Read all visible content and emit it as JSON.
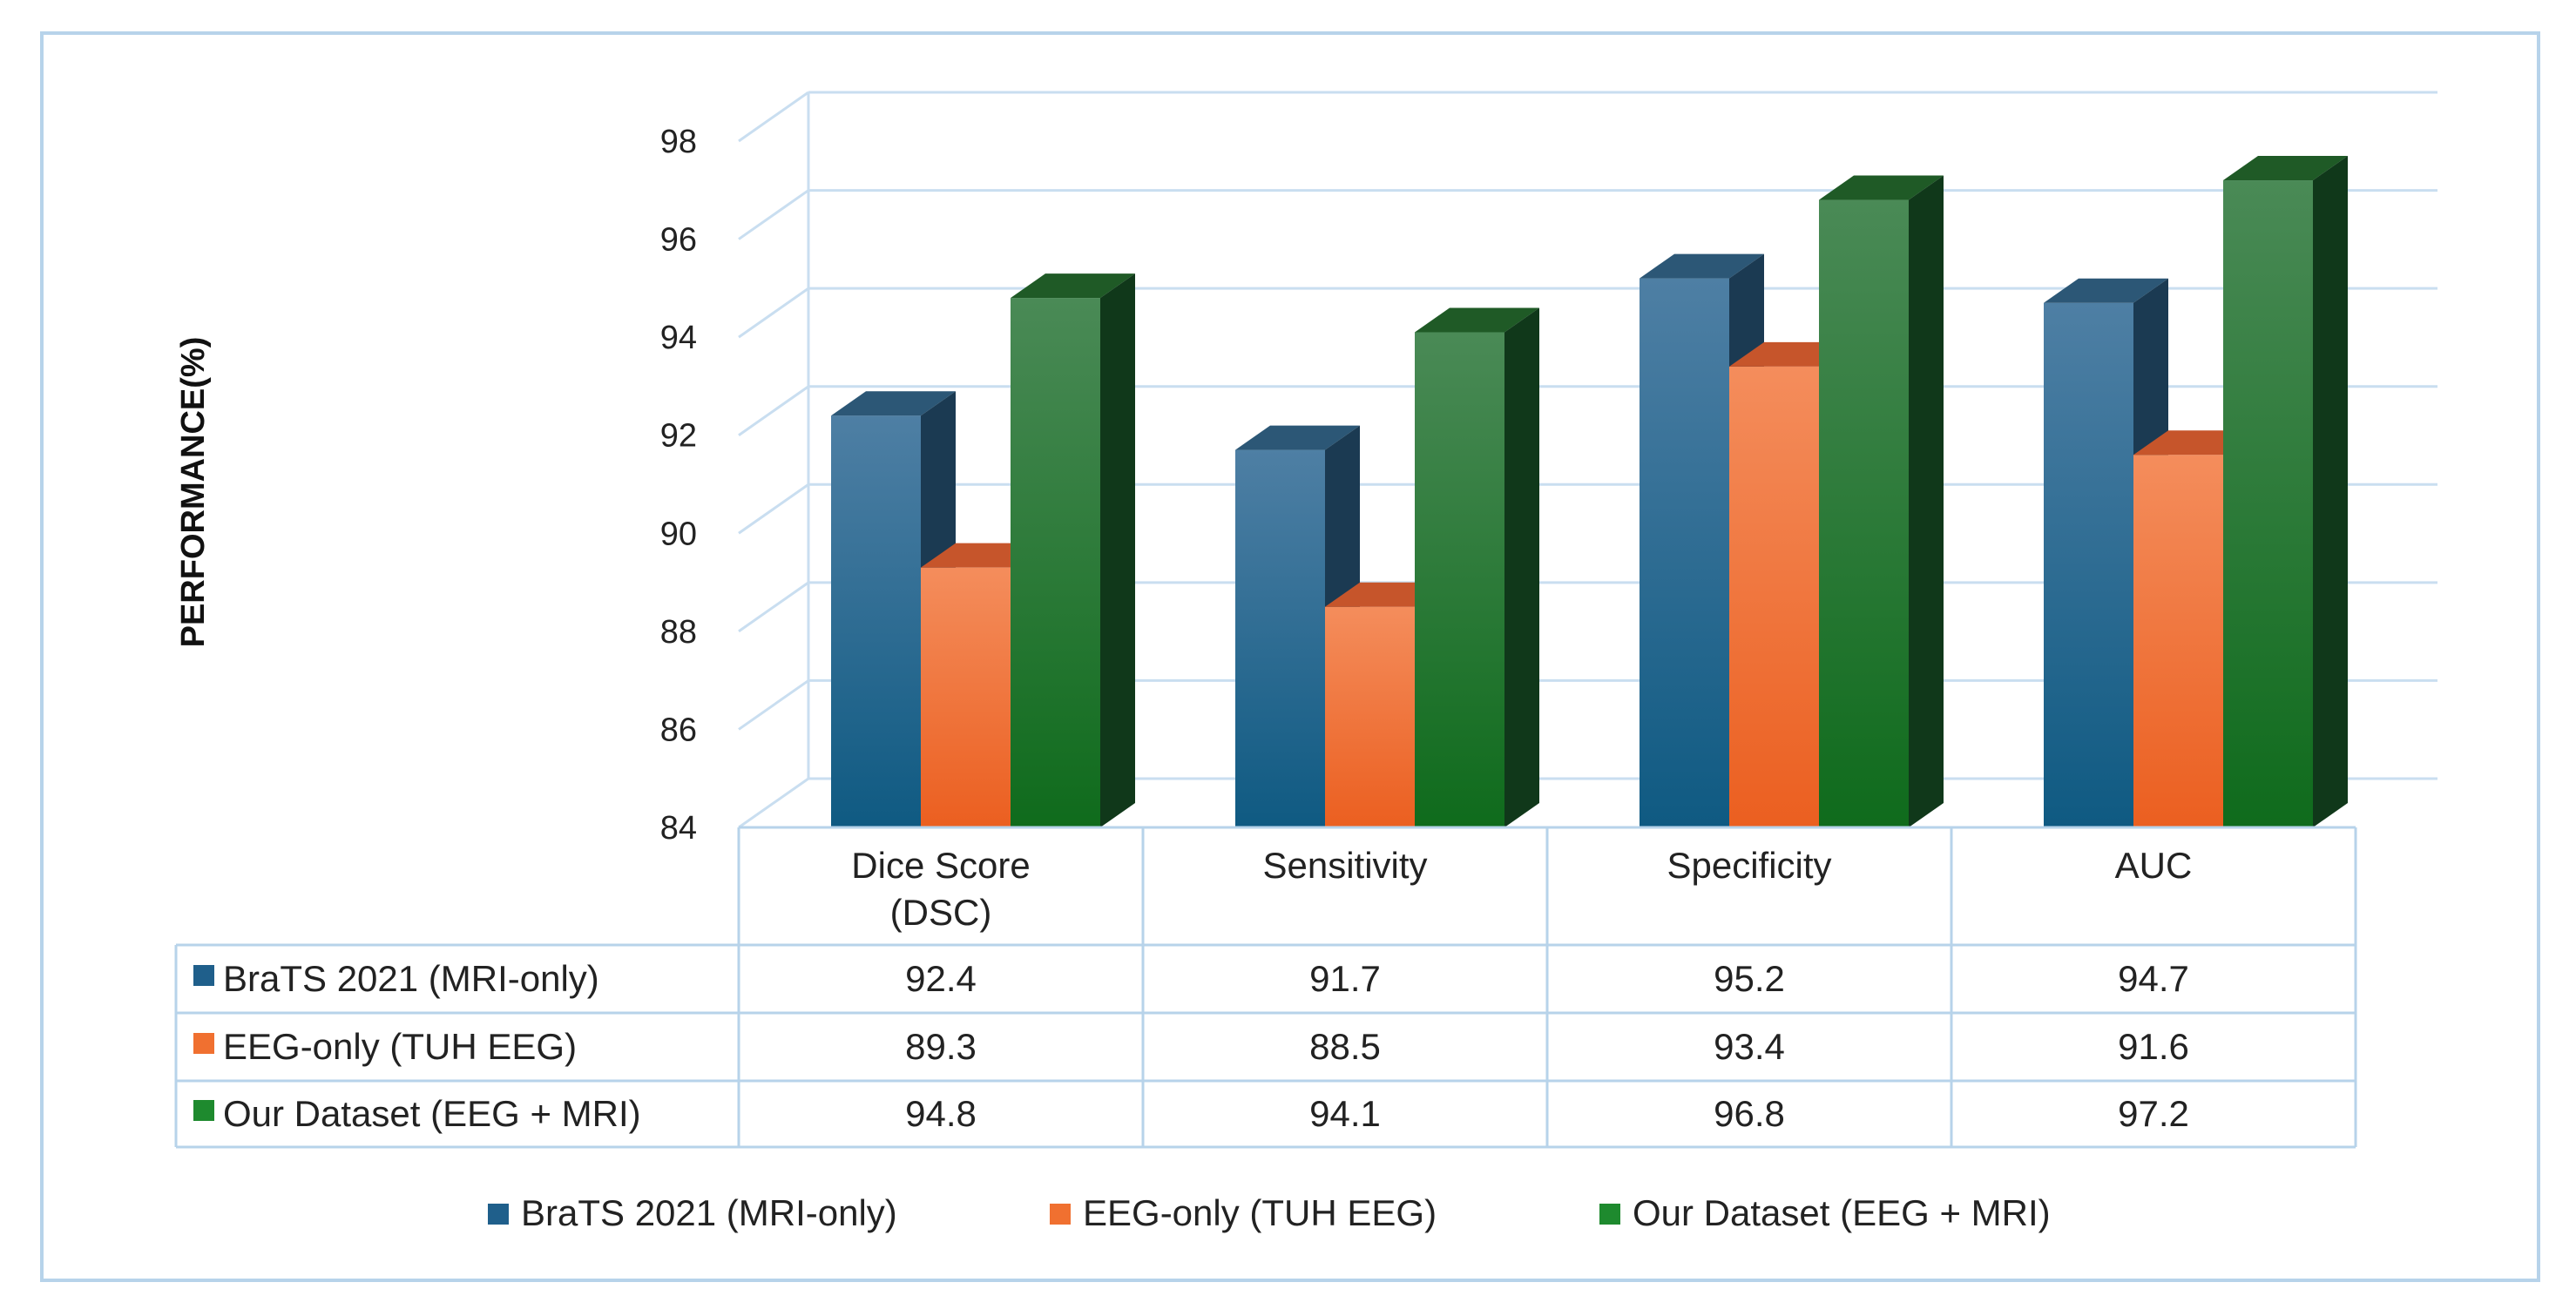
{
  "chart_data": {
    "type": "bar",
    "title": "",
    "xlabel": "",
    "ylabel": "PERFORMANCE(%)",
    "ylim": [
      84,
      98
    ],
    "yticks": [
      "84",
      "86",
      "88",
      "90",
      "92",
      "94",
      "96",
      "98"
    ],
    "grid": true,
    "legend_position": "bottom",
    "categories": [
      {
        "line1": "Dice Score",
        "line2": "(DSC)"
      },
      {
        "line1": "Sensitivity",
        "line2": ""
      },
      {
        "line1": "Specificity",
        "line2": ""
      },
      {
        "line1": "AUC",
        "line2": ""
      }
    ],
    "series": [
      {
        "name": "BraTS 2021 (MRI-only)",
        "values": [
          92.4,
          91.7,
          95.2,
          94.7
        ],
        "labels": [
          "92.4",
          "91.7",
          "95.2",
          "94.7"
        ],
        "color": "#1f5f8b"
      },
      {
        "name": "EEG-only (TUH EEG)",
        "values": [
          89.3,
          88.5,
          93.4,
          91.6
        ],
        "labels": [
          "89.3",
          "88.5",
          "93.4",
          "91.6"
        ],
        "color": "#f07030"
      },
      {
        "name": "Our Dataset (EEG + MRI)",
        "values": [
          94.8,
          94.1,
          96.8,
          97.2
        ],
        "labels": [
          "94.8",
          "94.1",
          "96.8",
          "97.2"
        ],
        "color": "#1e8a2e"
      }
    ]
  },
  "colors": {
    "frame": "#b7d3ea",
    "grid": "#c9def0",
    "table_border": "#b7d3ea",
    "series_top": [
      "#2c5776",
      "#c6552b",
      "#1f5a26"
    ],
    "series_side": [
      "#1b3a52",
      "#9a3f1c",
      "#10381a"
    ]
  }
}
